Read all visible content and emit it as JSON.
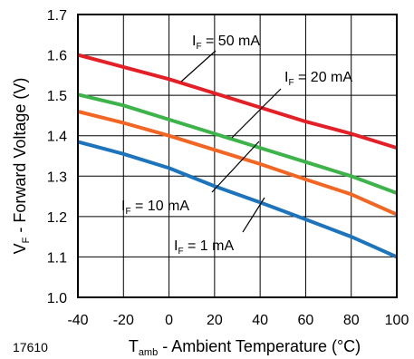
{
  "chart_data": {
    "type": "line",
    "figure_number": "17610",
    "xlabel": {
      "main": "T",
      "sub": "amb",
      "rest": " - Ambient Temperature (°C)"
    },
    "ylabel": {
      "main": "V",
      "sub": "F",
      "rest": " - Forward Voltage (V)"
    },
    "xlim": [
      -40,
      100
    ],
    "ylim": [
      1.0,
      1.7
    ],
    "x_ticks": [
      -40,
      -20,
      0,
      20,
      40,
      60,
      80,
      100
    ],
    "y_ticks": [
      "1.0",
      "1.1",
      "1.2",
      "1.3",
      "1.4",
      "1.5",
      "1.6",
      "1.7"
    ],
    "grid": true,
    "legend": "inline labels",
    "series": [
      {
        "name": "IF = 50 mA",
        "label": {
          "main": "I",
          "sub": "F",
          "rest": " = 50 mA"
        },
        "color": "#e41f26",
        "x": [
          -40,
          -20,
          0,
          20,
          40,
          60,
          80,
          100
        ],
        "y": [
          1.6,
          1.57,
          1.54,
          1.505,
          1.47,
          1.435,
          1.405,
          1.37
        ]
      },
      {
        "name": "IF = 20 mA",
        "label": {
          "main": "I",
          "sub": "F",
          "rest": " = 20 mA"
        },
        "color": "#3cb44a",
        "x": [
          -40,
          -20,
          0,
          20,
          40,
          60,
          80,
          100
        ],
        "y": [
          1.502,
          1.475,
          1.44,
          1.405,
          1.37,
          1.335,
          1.3,
          1.258
        ]
      },
      {
        "name": "IF = 10 mA",
        "label": {
          "main": "I",
          "sub": "F",
          "rest": " = 10 mA"
        },
        "color": "#f26522",
        "x": [
          -40,
          -20,
          0,
          20,
          40,
          60,
          80,
          100
        ],
        "y": [
          1.46,
          1.432,
          1.4,
          1.365,
          1.33,
          1.292,
          1.255,
          1.205
        ]
      },
      {
        "name": "IF = 1 mA",
        "label": {
          "main": "I",
          "sub": "F",
          "rest": " = 1 mA"
        },
        "color": "#1c75bc",
        "x": [
          -40,
          -20,
          0,
          20,
          40,
          60,
          80,
          100
        ],
        "y": [
          1.385,
          1.355,
          1.32,
          1.275,
          1.235,
          1.193,
          1.15,
          1.1
        ]
      }
    ]
  }
}
